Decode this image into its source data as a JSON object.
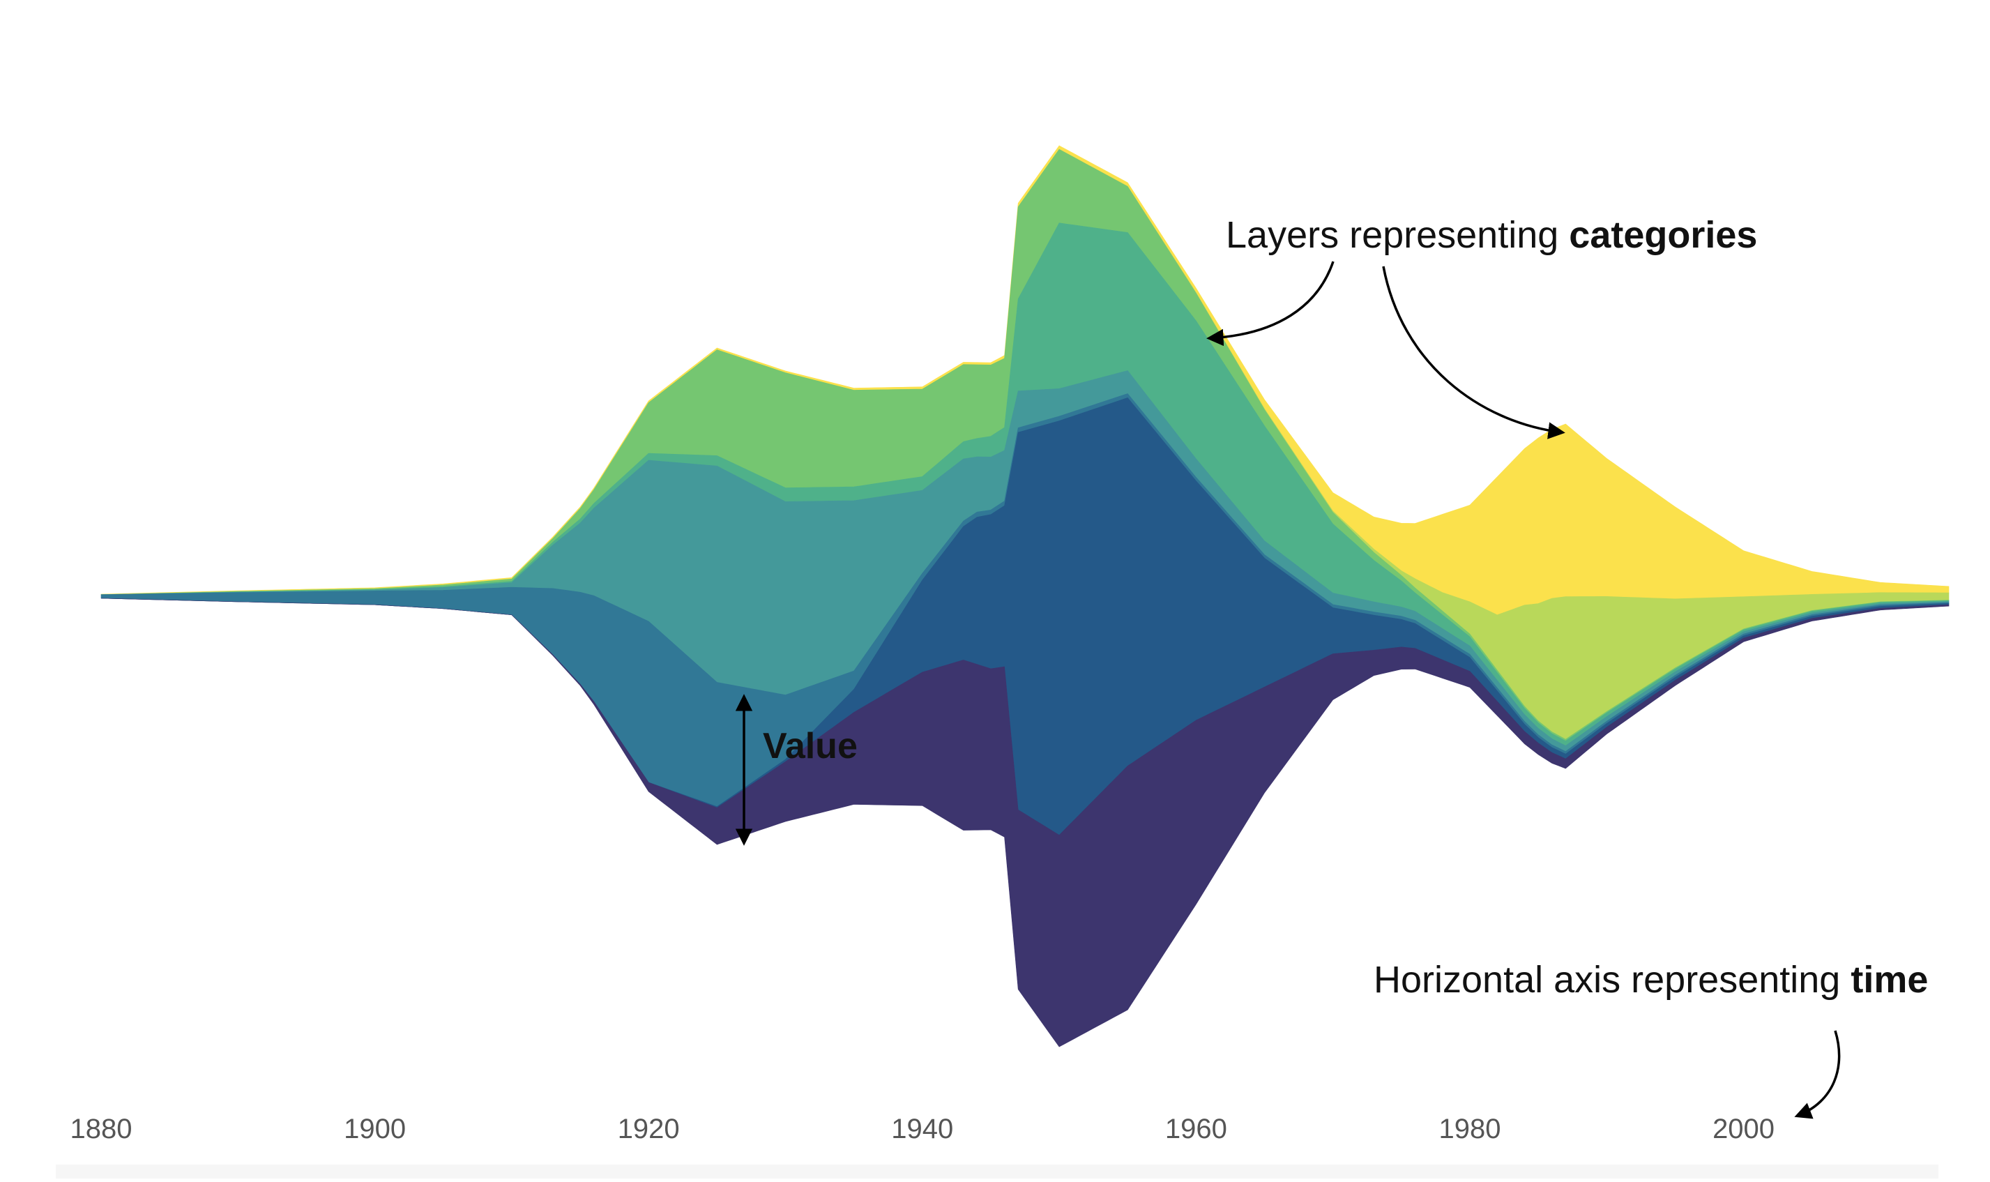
{
  "chart_data": {
    "type": "streamgraph",
    "x_axis": {
      "min": 1880,
      "max": 2015,
      "ticks": [
        "1880",
        "1900",
        "1920",
        "1940",
        "1960",
        "1980",
        "2000"
      ]
    },
    "grid": false,
    "legend": "none",
    "series": [
      {
        "color": "#fbe14c",
        "points": [
          [
            1880,
            1
          ],
          [
            1900,
            2
          ],
          [
            1910,
            3
          ],
          [
            1920,
            4
          ],
          [
            1930,
            4
          ],
          [
            1940,
            5
          ],
          [
            1945,
            5
          ],
          [
            1947,
            8
          ],
          [
            1950,
            8
          ],
          [
            1955,
            8
          ],
          [
            1960,
            10
          ],
          [
            1965,
            20
          ],
          [
            1970,
            40
          ],
          [
            1973,
            70
          ],
          [
            1976,
            120
          ],
          [
            1978,
            170
          ],
          [
            1980,
            210
          ],
          [
            1982,
            300
          ],
          [
            1984,
            340
          ],
          [
            1985,
            360
          ],
          [
            1987,
            375
          ],
          [
            1990,
            300
          ],
          [
            1995,
            200
          ],
          [
            2000,
            100
          ],
          [
            2005,
            50
          ],
          [
            2010,
            22
          ],
          [
            2015,
            14
          ]
        ]
      },
      {
        "color": "#b9d85a",
        "points": [
          [
            1880,
            0
          ],
          [
            1900,
            0
          ],
          [
            1930,
            0
          ],
          [
            1950,
            0
          ],
          [
            1960,
            1
          ],
          [
            1970,
            3
          ],
          [
            1975,
            10
          ],
          [
            1978,
            40
          ],
          [
            1980,
            70
          ],
          [
            1982,
            120
          ],
          [
            1984,
            220
          ],
          [
            1986,
            290
          ],
          [
            1987,
            310
          ],
          [
            1990,
            250
          ],
          [
            1995,
            150
          ],
          [
            2000,
            70
          ],
          [
            2005,
            35
          ],
          [
            2010,
            20
          ],
          [
            2015,
            16
          ]
        ]
      },
      {
        "color": "#75c671",
        "points": [
          [
            1880,
            0
          ],
          [
            1900,
            2
          ],
          [
            1910,
            5
          ],
          [
            1913,
            8
          ],
          [
            1916,
            30
          ],
          [
            1920,
            110
          ],
          [
            1925,
            230
          ],
          [
            1930,
            250
          ],
          [
            1935,
            210
          ],
          [
            1940,
            190
          ],
          [
            1944,
            160
          ],
          [
            1946,
            150
          ],
          [
            1947,
            200
          ],
          [
            1950,
            160
          ],
          [
            1955,
            100
          ],
          [
            1960,
            60
          ],
          [
            1965,
            35
          ],
          [
            1970,
            25
          ],
          [
            1975,
            12
          ],
          [
            1980,
            6
          ],
          [
            1985,
            4
          ],
          [
            1990,
            3
          ],
          [
            2000,
            2
          ],
          [
            2010,
            1
          ],
          [
            2015,
            1
          ]
        ]
      },
      {
        "color": "#4fb18a",
        "points": [
          [
            1880,
            0
          ],
          [
            1900,
            1
          ],
          [
            1910,
            3
          ],
          [
            1920,
            15
          ],
          [
            1930,
            30
          ],
          [
            1940,
            30
          ],
          [
            1944,
            40
          ],
          [
            1946,
            50
          ],
          [
            1947,
            200
          ],
          [
            1950,
            360
          ],
          [
            1955,
            300
          ],
          [
            1960,
            300
          ],
          [
            1965,
            250
          ],
          [
            1970,
            150
          ],
          [
            1973,
            90
          ],
          [
            1976,
            40
          ],
          [
            1980,
            20
          ],
          [
            1985,
            12
          ],
          [
            1990,
            8
          ],
          [
            2000,
            4
          ],
          [
            2010,
            3
          ],
          [
            2015,
            2
          ]
        ]
      },
      {
        "color": "#44999a",
        "points": [
          [
            1880,
            0
          ],
          [
            1900,
            2
          ],
          [
            1910,
            10
          ],
          [
            1915,
            150
          ],
          [
            1920,
            350
          ],
          [
            1925,
            470
          ],
          [
            1930,
            420
          ],
          [
            1935,
            370
          ],
          [
            1940,
            180
          ],
          [
            1944,
            120
          ],
          [
            1946,
            110
          ],
          [
            1947,
            80
          ],
          [
            1950,
            60
          ],
          [
            1955,
            50
          ],
          [
            1960,
            40
          ],
          [
            1965,
            30
          ],
          [
            1970,
            25
          ],
          [
            1975,
            20
          ],
          [
            1980,
            18
          ],
          [
            1985,
            14
          ],
          [
            1990,
            10
          ],
          [
            2000,
            5
          ],
          [
            2010,
            3
          ],
          [
            2015,
            2
          ]
        ]
      },
      {
        "color": "#317896",
        "points": [
          [
            1880,
            8
          ],
          [
            1890,
            20
          ],
          [
            1900,
            30
          ],
          [
            1905,
            40
          ],
          [
            1910,
            60
          ],
          [
            1915,
            200
          ],
          [
            1920,
            350
          ],
          [
            1925,
            270
          ],
          [
            1930,
            140
          ],
          [
            1935,
            40
          ],
          [
            1940,
            15
          ],
          [
            1945,
            10
          ],
          [
            1950,
            10
          ],
          [
            1960,
            8
          ],
          [
            1970,
            7
          ],
          [
            1980,
            7
          ],
          [
            1985,
            6
          ],
          [
            1990,
            5
          ],
          [
            2000,
            4
          ],
          [
            2010,
            3
          ],
          [
            2015,
            2
          ]
        ]
      },
      {
        "color": "#245989",
        "points": [
          [
            1880,
            0
          ],
          [
            1920,
            0
          ],
          [
            1930,
            5
          ],
          [
            1935,
            50
          ],
          [
            1940,
            200
          ],
          [
            1944,
            320
          ],
          [
            1946,
            350
          ],
          [
            1947,
            820
          ],
          [
            1950,
            900
          ],
          [
            1955,
            800
          ],
          [
            1960,
            520
          ],
          [
            1965,
            280
          ],
          [
            1970,
            100
          ],
          [
            1975,
            60
          ],
          [
            1980,
            30
          ],
          [
            1985,
            12
          ],
          [
            1990,
            8
          ],
          [
            2000,
            5
          ],
          [
            2010,
            4
          ],
          [
            2015,
            3
          ]
        ]
      },
      {
        "color": "#3d356e",
        "points": [
          [
            1880,
            0
          ],
          [
            1910,
            0
          ],
          [
            1915,
            3
          ],
          [
            1920,
            20
          ],
          [
            1925,
            80
          ],
          [
            1930,
            130
          ],
          [
            1935,
            200
          ],
          [
            1940,
            290
          ],
          [
            1943,
            370
          ],
          [
            1945,
            350
          ],
          [
            1947,
            390
          ],
          [
            1950,
            460
          ],
          [
            1955,
            530
          ],
          [
            1960,
            400
          ],
          [
            1965,
            230
          ],
          [
            1970,
            100
          ],
          [
            1973,
            55
          ],
          [
            1976,
            45
          ],
          [
            1980,
            35
          ],
          [
            1985,
            25
          ],
          [
            1990,
            15
          ],
          [
            2000,
            8
          ],
          [
            2010,
            4
          ],
          [
            2015,
            3
          ]
        ]
      }
    ],
    "annotations": [
      {
        "prefix": "Layers representing ",
        "bold": "categories"
      },
      {
        "prefix": "Horizontal axis representing ",
        "bold": "time"
      },
      {
        "prefix": "",
        "bold": "Value"
      }
    ]
  }
}
